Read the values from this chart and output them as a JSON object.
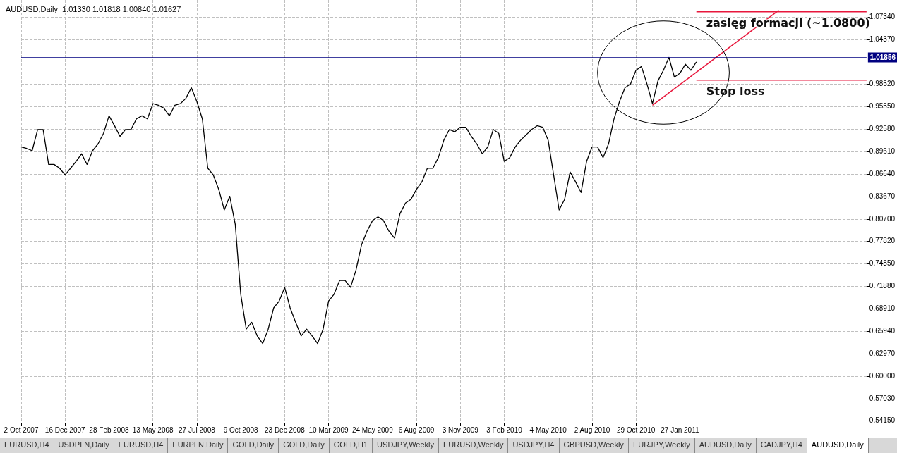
{
  "chart_data": {
    "type": "line",
    "title": "AUDUSD,Daily  1.01330 1.01818 1.00840 1.01627",
    "categories": [
      "2 Oct 2007",
      null,
      null,
      null,
      null,
      null,
      null,
      null,
      "16 Dec 2007",
      null,
      null,
      null,
      null,
      null,
      null,
      null,
      "28 Feb 2008",
      null,
      null,
      null,
      null,
      null,
      null,
      null,
      "13 May 2008",
      null,
      null,
      null,
      null,
      null,
      null,
      null,
      "27 Jul 2008",
      null,
      null,
      null,
      null,
      null,
      null,
      null,
      "9 Oct 2008",
      null,
      null,
      null,
      null,
      null,
      null,
      null,
      "23 Dec 2008",
      null,
      null,
      null,
      null,
      null,
      null,
      null,
      "10 Mar 2009",
      null,
      null,
      null,
      null,
      null,
      null,
      null,
      "24 May 2009",
      null,
      null,
      null,
      null,
      null,
      null,
      null,
      "6 Aug 2009",
      null,
      null,
      null,
      null,
      null,
      null,
      null,
      "3 Nov 2009",
      null,
      null,
      null,
      null,
      null,
      null,
      null,
      "3 Feb 2010",
      null,
      null,
      null,
      null,
      null,
      null,
      null,
      "4 May 2010",
      null,
      null,
      null,
      null,
      null,
      null,
      null,
      "2 Aug 2010",
      null,
      null,
      null,
      null,
      null,
      null,
      null,
      "29 Oct 2010",
      null,
      null,
      null,
      null,
      null,
      null,
      null,
      "27 Jan 2011",
      null,
      null,
      null,
      null,
      null,
      null,
      null,
      null,
      null,
      null,
      null,
      null,
      null,
      null,
      null,
      null,
      null,
      null,
      null,
      null,
      null,
      null,
      null,
      null,
      null,
      null,
      null,
      null,
      null,
      null,
      null,
      null,
      null,
      null
    ],
    "series": [
      {
        "color": "#000000",
        "values": [
          0.902,
          0.9,
          0.897,
          0.925,
          0.925,
          0.879,
          0.879,
          0.874,
          0.865,
          0.874,
          0.883,
          0.893,
          0.879,
          0.897,
          0.906,
          0.92,
          0.943,
          0.93,
          0.916,
          0.925,
          0.925,
          0.939,
          0.943,
          0.939,
          0.959,
          0.957,
          0.953,
          0.943,
          0.957,
          0.959,
          0.966,
          0.98,
          0.962,
          0.939,
          0.874,
          0.865,
          0.846,
          0.819,
          0.837,
          0.8,
          0.708,
          0.662,
          0.671,
          0.653,
          0.643,
          0.662,
          0.69,
          0.699,
          0.717,
          0.69,
          0.671,
          0.653,
          0.662,
          0.653,
          0.643,
          0.662,
          0.699,
          0.708,
          0.726,
          0.726,
          0.717,
          0.74,
          0.773,
          0.791,
          0.805,
          0.81,
          0.805,
          0.791,
          0.782,
          0.814,
          0.828,
          0.833,
          0.846,
          0.856,
          0.874,
          0.874,
          0.888,
          0.911,
          0.925,
          0.922,
          0.928,
          0.928,
          0.916,
          0.906,
          0.893,
          0.902,
          0.925,
          0.92,
          0.883,
          0.888,
          0.902,
          0.911,
          0.918,
          0.925,
          0.93,
          0.928,
          0.911,
          0.865,
          0.819,
          0.833,
          0.869,
          0.856,
          0.842,
          0.883,
          0.902,
          0.902,
          0.888,
          0.906,
          0.939,
          0.962,
          0.98,
          0.985,
          1.003,
          1.008,
          0.985,
          0.959,
          0.989,
          1.003,
          1.02,
          0.994,
          0.999,
          1.011,
          1.003,
          1.014,
          null,
          null,
          null,
          null,
          null,
          null,
          null,
          null,
          null,
          null,
          null,
          null,
          null,
          null,
          null,
          null,
          null,
          null,
          null,
          null,
          null,
          null,
          null,
          null,
          null,
          null,
          null,
          null,
          null,
          null,
          null
        ]
      },
      {
        "color": "#e8173c",
        "values": [
          null,
          null,
          null,
          null,
          null,
          null,
          null,
          null,
          null,
          null,
          null,
          null,
          null,
          null,
          null,
          null,
          null,
          null,
          null,
          null,
          null,
          null,
          null,
          null,
          null,
          null,
          null,
          null,
          null,
          null,
          null,
          null,
          null,
          null,
          null,
          null,
          null,
          null,
          null,
          null,
          null,
          null,
          null,
          null,
          null,
          null,
          null,
          null,
          null,
          null,
          null,
          null,
          null,
          null,
          null,
          null,
          null,
          null,
          null,
          null,
          null,
          null,
          null,
          null,
          null,
          null,
          null,
          null,
          null,
          null,
          null,
          null,
          null,
          null,
          null,
          null,
          null,
          null,
          null,
          null,
          null,
          null,
          null,
          null,
          null,
          null,
          null,
          null,
          null,
          null,
          null,
          null,
          null,
          null,
          null,
          null,
          null,
          null,
          null,
          null,
          null,
          null,
          null,
          null,
          null,
          null,
          null,
          null,
          null,
          null,
          null,
          null,
          null,
          null,
          null,
          0.957,
          null,
          null,
          null,
          null,
          null,
          null,
          null,
          null,
          null,
          null,
          null,
          null,
          null,
          null,
          null,
          null,
          null,
          null,
          null,
          null,
          null,
          null,
          1.082,
          null,
          null,
          null,
          null,
          null,
          null,
          null,
          null,
          null,
          null,
          null,
          null,
          null,
          null,
          null,
          null
        ]
      },
      {
        "name": "zasięg formacji (~1.0800)",
        "color": "#e8173c",
        "values": [
          null,
          null,
          null,
          null,
          null,
          null,
          null,
          null,
          null,
          null,
          null,
          null,
          null,
          null,
          null,
          null,
          null,
          null,
          null,
          null,
          null,
          null,
          null,
          null,
          null,
          null,
          null,
          null,
          null,
          null,
          null,
          null,
          null,
          null,
          null,
          null,
          null,
          null,
          null,
          null,
          null,
          null,
          null,
          null,
          null,
          null,
          null,
          null,
          null,
          null,
          null,
          null,
          null,
          null,
          null,
          null,
          null,
          null,
          null,
          null,
          null,
          null,
          null,
          null,
          null,
          null,
          null,
          null,
          null,
          null,
          null,
          null,
          null,
          null,
          null,
          null,
          null,
          null,
          null,
          null,
          null,
          null,
          null,
          null,
          null,
          null,
          null,
          null,
          null,
          null,
          null,
          null,
          null,
          null,
          null,
          null,
          null,
          null,
          null,
          null,
          null,
          null,
          null,
          null,
          null,
          null,
          null,
          null,
          null,
          null,
          null,
          null,
          null,
          null,
          null,
          null,
          null,
          null,
          null,
          null,
          null,
          null,
          null,
          1.08,
          null,
          null,
          null,
          null,
          null,
          null,
          null,
          null,
          null,
          null,
          null,
          null,
          null,
          null,
          null,
          null,
          null,
          null,
          null,
          null,
          null,
          null,
          null,
          null,
          null,
          null,
          null,
          null,
          null,
          null,
          1.08
        ]
      },
      {
        "name": "Stop loss",
        "color": "#e8173c",
        "values": [
          null,
          null,
          null,
          null,
          null,
          null,
          null,
          null,
          null,
          null,
          null,
          null,
          null,
          null,
          null,
          null,
          null,
          null,
          null,
          null,
          null,
          null,
          null,
          null,
          null,
          null,
          null,
          null,
          null,
          null,
          null,
          null,
          null,
          null,
          null,
          null,
          null,
          null,
          null,
          null,
          null,
          null,
          null,
          null,
          null,
          null,
          null,
          null,
          null,
          null,
          null,
          null,
          null,
          null,
          null,
          null,
          null,
          null,
          null,
          null,
          null,
          null,
          null,
          null,
          null,
          null,
          null,
          null,
          null,
          null,
          null,
          null,
          null,
          null,
          null,
          null,
          null,
          null,
          null,
          null,
          null,
          null,
          null,
          null,
          null,
          null,
          null,
          null,
          null,
          null,
          null,
          null,
          null,
          null,
          null,
          null,
          null,
          null,
          null,
          null,
          null,
          null,
          null,
          null,
          null,
          null,
          null,
          null,
          null,
          null,
          null,
          null,
          null,
          null,
          null,
          null,
          null,
          null,
          null,
          null,
          null,
          null,
          null,
          0.99,
          null,
          null,
          null,
          null,
          null,
          null,
          null,
          null,
          null,
          null,
          null,
          null,
          null,
          null,
          null,
          null,
          null,
          null,
          null,
          null,
          null,
          null,
          null,
          null,
          null,
          null,
          null,
          null,
          null,
          null,
          0.99
        ]
      }
    ],
    "ylim": [
      0.5387,
      1.0956
    ],
    "yticks": [
      {
        "value": 0.5415,
        "label": "0.54150"
      },
      {
        "value": 0.5703,
        "label": "0.57030"
      },
      {
        "value": 0.6,
        "label": "0.60000"
      },
      {
        "value": 0.6297,
        "label": "0.62970"
      },
      {
        "value": 0.6594,
        "label": "0.65940"
      },
      {
        "value": 0.6891,
        "label": "0.68910"
      },
      {
        "value": 0.7188,
        "label": "0.71880"
      },
      {
        "value": 0.7485,
        "label": "0.74850"
      },
      {
        "value": 0.7782,
        "label": "0.77820"
      },
      {
        "value": 0.807,
        "label": "0.80700"
      },
      {
        "value": 0.8367,
        "label": "0.83670"
      },
      {
        "value": 0.8664,
        "label": "0.86640"
      },
      {
        "value": 0.8961,
        "label": "0.89610"
      },
      {
        "value": 0.9258,
        "label": "0.92580"
      },
      {
        "value": 0.9555,
        "label": "0.95550"
      },
      {
        "value": 0.9852,
        "label": "0.98520"
      },
      {
        "value": 1.0437,
        "label": "1.04370"
      },
      {
        "value": 1.0734,
        "label": "1.07340"
      }
    ],
    "ref_lines": [
      {
        "axis": "y",
        "value": 1.01856,
        "label": "1.01856",
        "color": "#000080"
      }
    ],
    "grid": true,
    "annotations": [
      "EURUSD,H4",
      "USDPLN,Daily",
      "EURUSD,H4",
      "EURPLN,Daily",
      "GOLD,Daily",
      "GOLD,Daily",
      "GOLD,H1",
      "USDJPY,Weekly",
      "EURUSD,Weekly",
      "USDJPY,H4",
      "GBPUSD,Weekly",
      "EURJPY,Weekly",
      "AUDUSD,Daily",
      "CADJPY,H4",
      "AUDUSD,Daily"
    ]
  }
}
